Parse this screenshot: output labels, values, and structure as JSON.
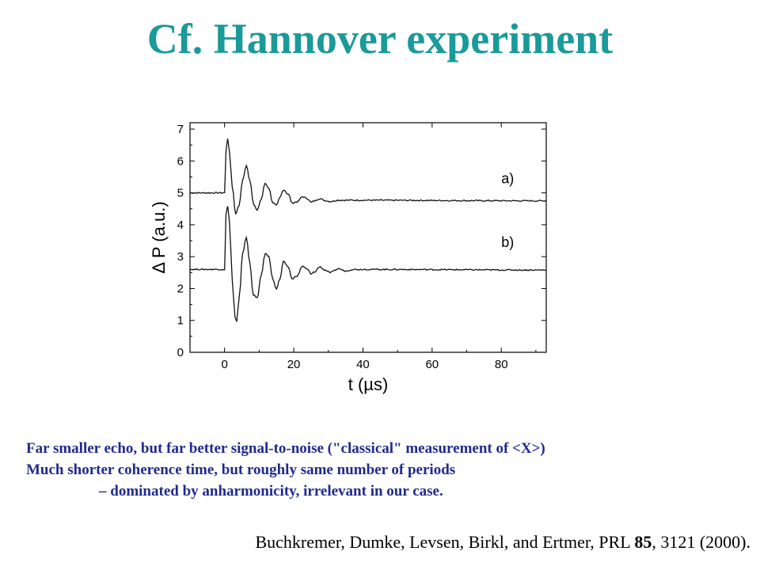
{
  "slide": {
    "title": "Cf. Hannover experiment",
    "notes": [
      "Far smaller echo, but far better signal-to-noise (\"classical\" measurement of <X>)",
      "Much shorter coherence time, but roughly same number of periods",
      "– dominated by anharmonicity, irrelevant in our case."
    ],
    "citation": {
      "authors": "Buchkremer, Dumke, Levsen, Birkl, and Ertmer, PRL ",
      "volume": "85",
      "rest": ", 3121 (2000)."
    }
  },
  "colors": {
    "title": "#1a9a9a",
    "notes": "#1f2a8f",
    "trace": "#111111"
  },
  "chart_data": {
    "type": "line",
    "xlabel": "t (µs)",
    "ylabel": "Δ P (a.u.)",
    "xlim": [
      -10,
      93
    ],
    "ylim": [
      0,
      7.2
    ],
    "xticks": [
      0,
      20,
      40,
      60,
      80
    ],
    "yticks": [
      0,
      1,
      2,
      3,
      4,
      5,
      6,
      7
    ],
    "grid": false,
    "series": [
      {
        "name": "a)",
        "baseline_before": 5.0,
        "baseline_after": 4.75,
        "x": [
          -10,
          0,
          0.4,
          0.9,
          1.4,
          2.2,
          3.2,
          4.2,
          5.2,
          6.3,
          7.3,
          8.4,
          9.4,
          10.6,
          11.7,
          12.8,
          13.9,
          15,
          16,
          17,
          18.5,
          19.5,
          21,
          22.5,
          24,
          25,
          26,
          27.5,
          29,
          30.5,
          33,
          93
        ],
        "y": [
          5.0,
          5.0,
          6.3,
          6.7,
          6.3,
          5.2,
          4.35,
          4.6,
          5.4,
          5.85,
          5.4,
          4.65,
          4.45,
          4.8,
          5.3,
          5.15,
          4.7,
          4.6,
          4.85,
          5.1,
          4.95,
          4.68,
          4.72,
          4.88,
          4.82,
          4.7,
          4.75,
          4.82,
          4.76,
          4.73,
          4.77,
          4.75
        ]
      },
      {
        "name": "b)",
        "baseline_before": 2.6,
        "baseline_after": 2.58,
        "x": [
          -10,
          0,
          0.4,
          0.9,
          1.4,
          2.2,
          3.0,
          3.5,
          4.3,
          5.2,
          6.3,
          7.3,
          8.3,
          9.4,
          10.6,
          11.7,
          12.8,
          13.9,
          15,
          16,
          17,
          18.5,
          19.5,
          21,
          22.5,
          24,
          25,
          26,
          27.5,
          29,
          30.5,
          33,
          35,
          37,
          93
        ],
        "y": [
          2.6,
          2.6,
          4.3,
          4.6,
          4.1,
          2.3,
          1.1,
          0.95,
          1.8,
          3.1,
          3.6,
          2.8,
          1.8,
          1.7,
          2.4,
          3.1,
          3.0,
          2.3,
          2.0,
          2.3,
          2.85,
          2.65,
          2.3,
          2.4,
          2.7,
          2.6,
          2.45,
          2.52,
          2.68,
          2.58,
          2.5,
          2.62,
          2.55,
          2.6,
          2.58
        ]
      }
    ]
  }
}
